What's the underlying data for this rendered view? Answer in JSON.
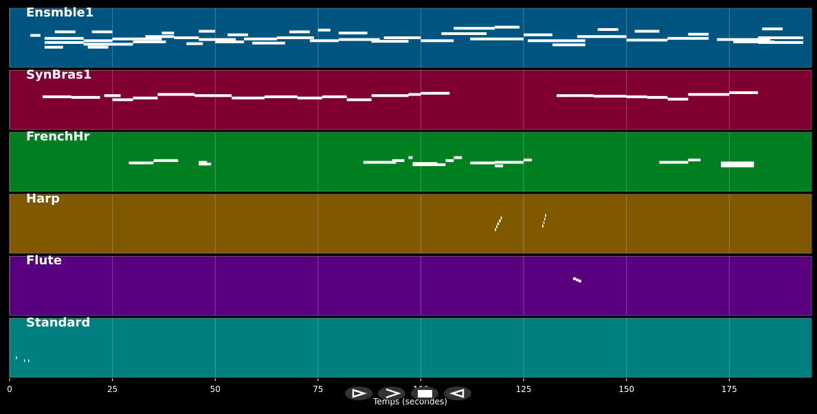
{
  "chart_data": {
    "type": "pianoroll",
    "xlabel": "Temps (secondes)",
    "xlim": [
      0,
      195
    ],
    "xticks": [
      0,
      25,
      50,
      75,
      100,
      125,
      150,
      175
    ],
    "grid": true,
    "ylim": [
      0,
      100
    ],
    "tracks": [
      {
        "name": "Ensmble1",
        "color": "#005580",
        "notes": [
          [
            5,
            7.5,
            54
          ],
          [
            8.5,
            18,
            49
          ],
          [
            8.5,
            18,
            42
          ],
          [
            8.5,
            13,
            34
          ],
          [
            11,
            16,
            60
          ],
          [
            18,
            25,
            45
          ],
          [
            18,
            30,
            39
          ],
          [
            19,
            24,
            34
          ],
          [
            20,
            25,
            60
          ],
          [
            25,
            37,
            48
          ],
          [
            30,
            38,
            43
          ],
          [
            33,
            40,
            52
          ],
          [
            37,
            40,
            58
          ],
          [
            40,
            46,
            50
          ],
          [
            43,
            47,
            40
          ],
          [
            46,
            55,
            47
          ],
          [
            46,
            50,
            61
          ],
          [
            50,
            57,
            43
          ],
          [
            53,
            58,
            55
          ],
          [
            57,
            65,
            48
          ],
          [
            59,
            67,
            41
          ],
          [
            65,
            74,
            50
          ],
          [
            68,
            73,
            60
          ],
          [
            73,
            80,
            45
          ],
          [
            75,
            78,
            63
          ],
          [
            80,
            90,
            47
          ],
          [
            80,
            87,
            58
          ],
          [
            88,
            97,
            44
          ],
          [
            91,
            100,
            50
          ],
          [
            100,
            108,
            45
          ],
          [
            105,
            116,
            57
          ],
          [
            108,
            118,
            66
          ],
          [
            112,
            125,
            48
          ],
          [
            118,
            124,
            68
          ],
          [
            125,
            132,
            55
          ],
          [
            126,
            140,
            45
          ],
          [
            132,
            140,
            38
          ],
          [
            138,
            150,
            52
          ],
          [
            143,
            148,
            64
          ],
          [
            150,
            160,
            46
          ],
          [
            152,
            158,
            61
          ],
          [
            160,
            170,
            49
          ],
          [
            165,
            170,
            56
          ],
          [
            172,
            185,
            47
          ],
          [
            176,
            186,
            43
          ],
          [
            182,
            193,
            42
          ],
          [
            182,
            193,
            50
          ],
          [
            183,
            188,
            65
          ]
        ]
      },
      {
        "name": "SynBras1",
        "color": "#7f0030",
        "notes": [
          [
            8,
            15,
            55
          ],
          [
            15,
            22,
            54
          ],
          [
            23,
            27,
            57
          ],
          [
            25,
            30,
            50
          ],
          [
            30,
            36,
            53
          ],
          [
            36,
            45,
            59
          ],
          [
            45,
            50,
            57
          ],
          [
            50,
            54,
            57
          ],
          [
            54,
            62,
            53
          ],
          [
            62,
            70,
            55
          ],
          [
            70,
            76,
            53
          ],
          [
            76,
            82,
            55
          ],
          [
            82,
            88,
            50
          ],
          [
            88,
            97,
            57
          ],
          [
            97,
            100,
            59
          ],
          [
            100,
            107,
            61
          ],
          [
            133,
            142,
            57
          ],
          [
            142,
            150,
            56
          ],
          [
            150,
            155,
            55
          ],
          [
            155,
            160,
            54
          ],
          [
            160,
            165,
            51
          ],
          [
            165,
            175,
            59
          ],
          [
            175,
            182,
            62
          ]
        ]
      },
      {
        "name": "FrenchHr",
        "color": "#007f20",
        "notes": [
          [
            29,
            35,
            48
          ],
          [
            35,
            41,
            52
          ],
          [
            46,
            48,
            49
          ],
          [
            46,
            49,
            46
          ],
          [
            86,
            94,
            49
          ],
          [
            93,
            96,
            52
          ],
          [
            97,
            98,
            57
          ],
          [
            98,
            106,
            45
          ],
          [
            98,
            104,
            47
          ],
          [
            106,
            108,
            52
          ],
          [
            108,
            110,
            57
          ],
          [
            112,
            118,
            48
          ],
          [
            118,
            120,
            43
          ],
          [
            118,
            125,
            49
          ],
          [
            125,
            127,
            53
          ],
          [
            158,
            165,
            49
          ],
          [
            165,
            168,
            53
          ],
          [
            173,
            181,
            48
          ],
          [
            173,
            181,
            46
          ],
          [
            173,
            181,
            43
          ]
        ]
      },
      {
        "name": "Harp",
        "color": "#7f5800",
        "notes": [
          [
            118,
            118.3,
            40
          ],
          [
            118.3,
            118.6,
            45
          ],
          [
            118.6,
            119,
            50
          ],
          [
            119,
            119.4,
            55
          ],
          [
            119.4,
            119.7,
            60
          ],
          [
            129.5,
            129.8,
            46
          ],
          [
            129.8,
            130,
            52
          ],
          [
            130,
            130.2,
            58
          ],
          [
            130.2,
            130.4,
            64
          ]
        ]
      },
      {
        "name": "Flute",
        "color": "#580080",
        "notes": [
          [
            137,
            137.7,
            62
          ],
          [
            137.7,
            138.3,
            60
          ],
          [
            138.3,
            139,
            58
          ]
        ]
      },
      {
        "name": "Standard",
        "color": "#007f80",
        "notes": [
          [
            1.5,
            1.7,
            33
          ],
          [
            3.5,
            3.7,
            28
          ],
          [
            4.5,
            4.7,
            28
          ]
        ]
      }
    ]
  }
}
